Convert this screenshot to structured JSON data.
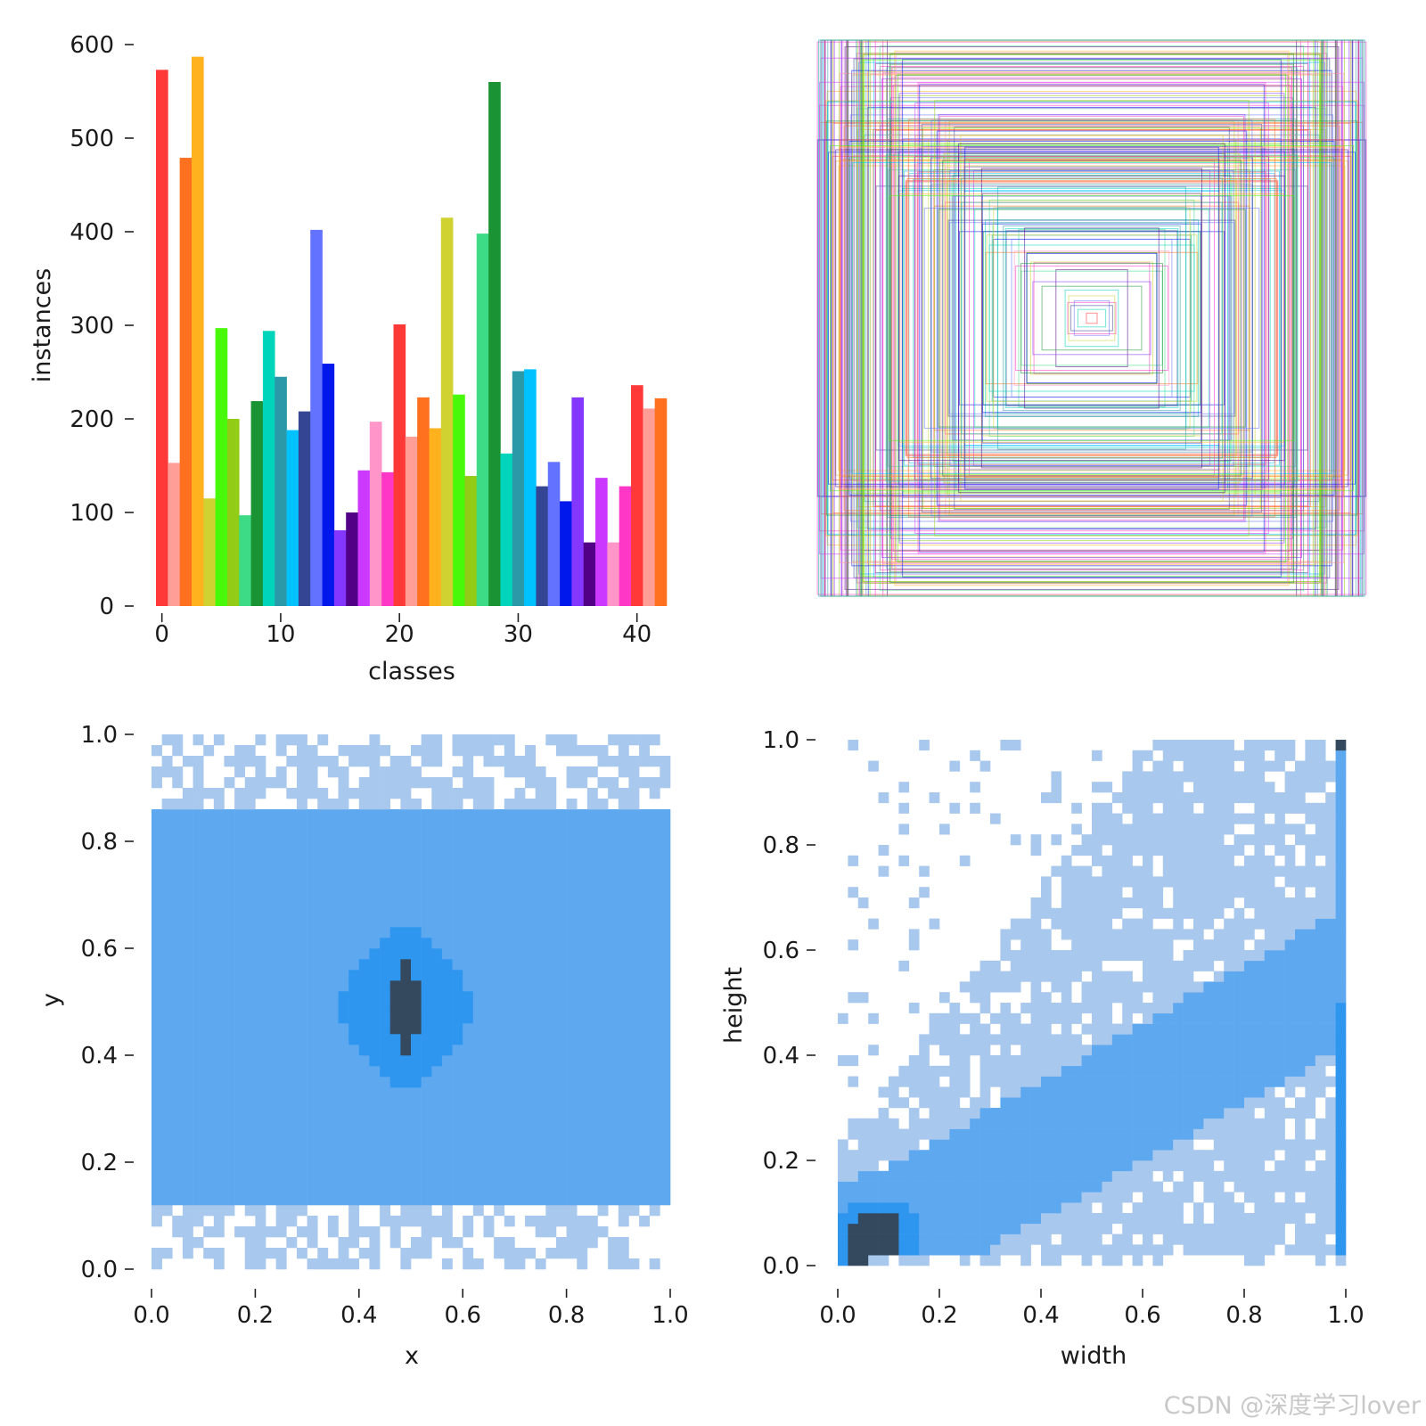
{
  "watermark": "CSDN @深度学习lover",
  "colors": {
    "heat_light": "#a9c8ee",
    "heat_mid": "#5ea8ef",
    "heat_bright": "#2f96f0",
    "heat_dark": "#34495e",
    "text": "#1a1a1a"
  },
  "chart_data": [
    {
      "type": "bar",
      "title": "",
      "xlabel": "classes",
      "ylabel": "instances",
      "xticks": [
        0,
        10,
        20,
        30,
        40
      ],
      "yticks": [
        0,
        100,
        200,
        300,
        400,
        500,
        600
      ],
      "xlim": [
        -0.5,
        42.5
      ],
      "ylim": [
        0,
        600
      ],
      "palette": [
        "#ff3838",
        "#ff9d97",
        "#ff701f",
        "#ffb21d",
        "#cfd231",
        "#48f90a",
        "#92cc17",
        "#3ddb86",
        "#1a9334",
        "#00d4bb",
        "#2c99a8",
        "#00c2ff",
        "#344593",
        "#6473ff",
        "#0018ec",
        "#8438ff",
        "#520085",
        "#cb38ff",
        "#ff95c8",
        "#ff37c7"
      ],
      "values": [
        573,
        153,
        479,
        587,
        115,
        297,
        200,
        97,
        219,
        294,
        245,
        188,
        208,
        402,
        259,
        81,
        100,
        145,
        197,
        143,
        301,
        181,
        223,
        190,
        415,
        226,
        139,
        398,
        560,
        163,
        251,
        253,
        128,
        154,
        112,
        223,
        68,
        137,
        68,
        128,
        236,
        211,
        222
      ]
    },
    {
      "type": "other",
      "description_kind": "nested bounding-box overlay",
      "box_count": 240,
      "seed": 7
    },
    {
      "type": "heatmap",
      "xlabel": "x",
      "ylabel": "y",
      "xticks": [
        "0.0",
        "0.2",
        "0.4",
        "0.6",
        "0.8",
        "1.0"
      ],
      "yticks": [
        "0.0",
        "0.2",
        "0.4",
        "0.6",
        "0.8",
        "1.0"
      ],
      "xlim": [
        0,
        1
      ],
      "ylim": [
        0,
        1
      ],
      "bins": 50,
      "data_range": {
        "x": [
          0.01,
          0.99
        ],
        "y": [
          0.01,
          0.99
        ]
      },
      "peak": {
        "x": 0.49,
        "y": 0.49
      },
      "seed": 11
    },
    {
      "type": "heatmap",
      "xlabel": "width",
      "ylabel": "height",
      "xticks": [
        "0.0",
        "0.2",
        "0.4",
        "0.6",
        "0.8",
        "1.0"
      ],
      "yticks": [
        "0.0",
        "0.2",
        "0.4",
        "0.6",
        "0.8",
        "1.0"
      ],
      "xlim": [
        0,
        1
      ],
      "ylim": [
        0,
        1
      ],
      "bins": 50,
      "data_range": {
        "x": [
          0.0,
          1.0
        ],
        "y": [
          0.0,
          1.0
        ]
      },
      "peak": {
        "x": 0.07,
        "y": 0.05
      },
      "seed": 23
    }
  ]
}
